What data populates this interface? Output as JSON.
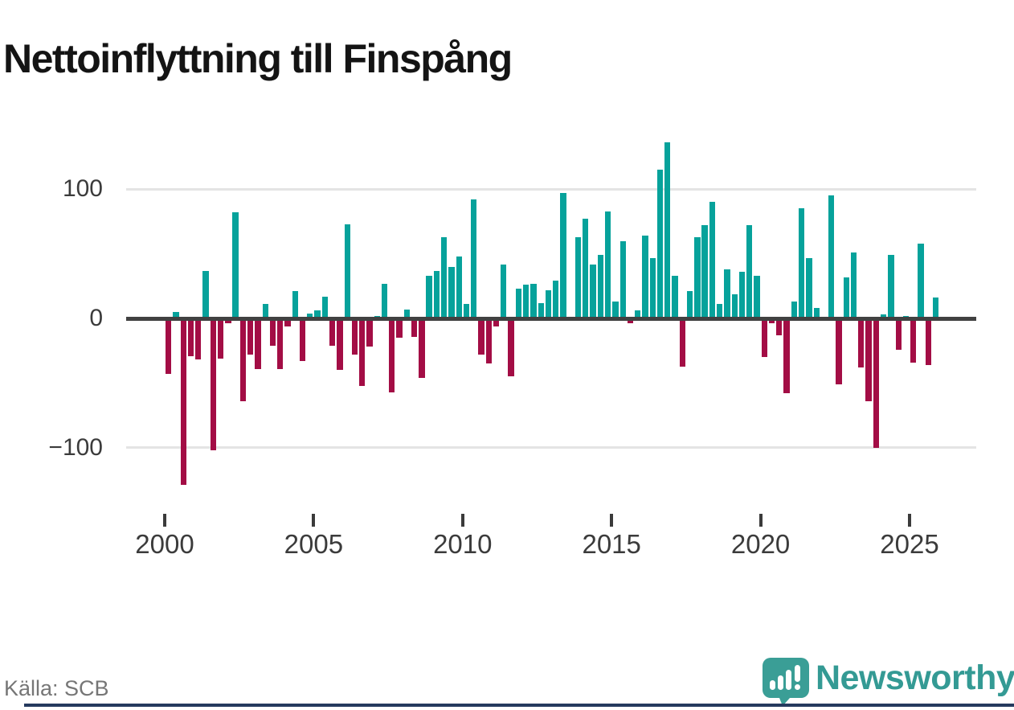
{
  "title": "Nettoinflyttning till Finspång",
  "source": "Källa: SCB",
  "brand": {
    "name": "Newsworthy",
    "icon": "bar-chart-speech-bubble"
  },
  "colors": {
    "positive": "#06a29b",
    "negative": "#a30d45",
    "zero_line": "#414141",
    "gridline": "#e4e4e4",
    "axis_text": "#3b3b3b",
    "source_text": "#767676",
    "brand_teal": "#349a94",
    "footer_bar": "#253a5e"
  },
  "y_axis": {
    "tick_labels": [
      "100",
      "0",
      "−100"
    ],
    "tick_values": [
      100,
      0,
      -100
    ]
  },
  "x_axis": {
    "tick_labels": [
      "2000",
      "2005",
      "2010",
      "2015",
      "2020",
      "2025"
    ]
  },
  "chart_data": {
    "type": "bar",
    "frequency": "quarterly",
    "x_start": "2000-Q1",
    "x_end": "2025-Q4",
    "title": "Nettoinflyttning till Finspång",
    "ylabel": "",
    "xlabel": "",
    "ylim": [
      -140,
      150
    ],
    "grid": "horizontal",
    "legend": "none",
    "series": [
      {
        "year": 2000,
        "values": [
          -43,
          5,
          -129,
          -29
        ]
      },
      {
        "year": 2001,
        "values": [
          -32,
          37,
          -102,
          -31
        ]
      },
      {
        "year": 2002,
        "values": [
          -4,
          82,
          -64,
          -28
        ]
      },
      {
        "year": 2003,
        "values": [
          -39,
          11,
          -21,
          -39
        ]
      },
      {
        "year": 2004,
        "values": [
          -6,
          21,
          -33,
          4
        ]
      },
      {
        "year": 2005,
        "values": [
          6,
          17,
          -21,
          -40
        ]
      },
      {
        "year": 2006,
        "values": [
          73,
          -28,
          -52,
          -22
        ]
      },
      {
        "year": 2007,
        "values": [
          2,
          27,
          -57,
          -15
        ]
      },
      {
        "year": 2008,
        "values": [
          7,
          -14,
          -46,
          33
        ]
      },
      {
        "year": 2009,
        "values": [
          37,
          63,
          40,
          48
        ]
      },
      {
        "year": 2010,
        "values": [
          11,
          92,
          -28,
          -35
        ]
      },
      {
        "year": 2011,
        "values": [
          -6,
          42,
          -45,
          23
        ]
      },
      {
        "year": 2012,
        "values": [
          26,
          27,
          12,
          22
        ]
      },
      {
        "year": 2013,
        "values": [
          29,
          97,
          0,
          63
        ]
      },
      {
        "year": 2014,
        "values": [
          77,
          42,
          49,
          83
        ]
      },
      {
        "year": 2015,
        "values": [
          13,
          60,
          -4,
          6
        ]
      },
      {
        "year": 2016,
        "values": [
          64,
          47,
          115,
          136
        ]
      },
      {
        "year": 2017,
        "values": [
          33,
          -37,
          21,
          63
        ]
      },
      {
        "year": 2018,
        "values": [
          72,
          90,
          11,
          38
        ]
      },
      {
        "year": 2019,
        "values": [
          19,
          36,
          72,
          33
        ]
      },
      {
        "year": 2020,
        "values": [
          -30,
          -4,
          -13,
          -58
        ]
      },
      {
        "year": 2021,
        "values": [
          13,
          85,
          47,
          8
        ]
      },
      {
        "year": 2022,
        "values": [
          0,
          95,
          -51,
          32
        ]
      },
      {
        "year": 2023,
        "values": [
          51,
          -38,
          -64,
          -100
        ]
      },
      {
        "year": 2024,
        "values": [
          3,
          49,
          -24,
          2
        ]
      },
      {
        "year": 2025,
        "values": [
          -34,
          58,
          -36,
          16
        ]
      }
    ]
  }
}
